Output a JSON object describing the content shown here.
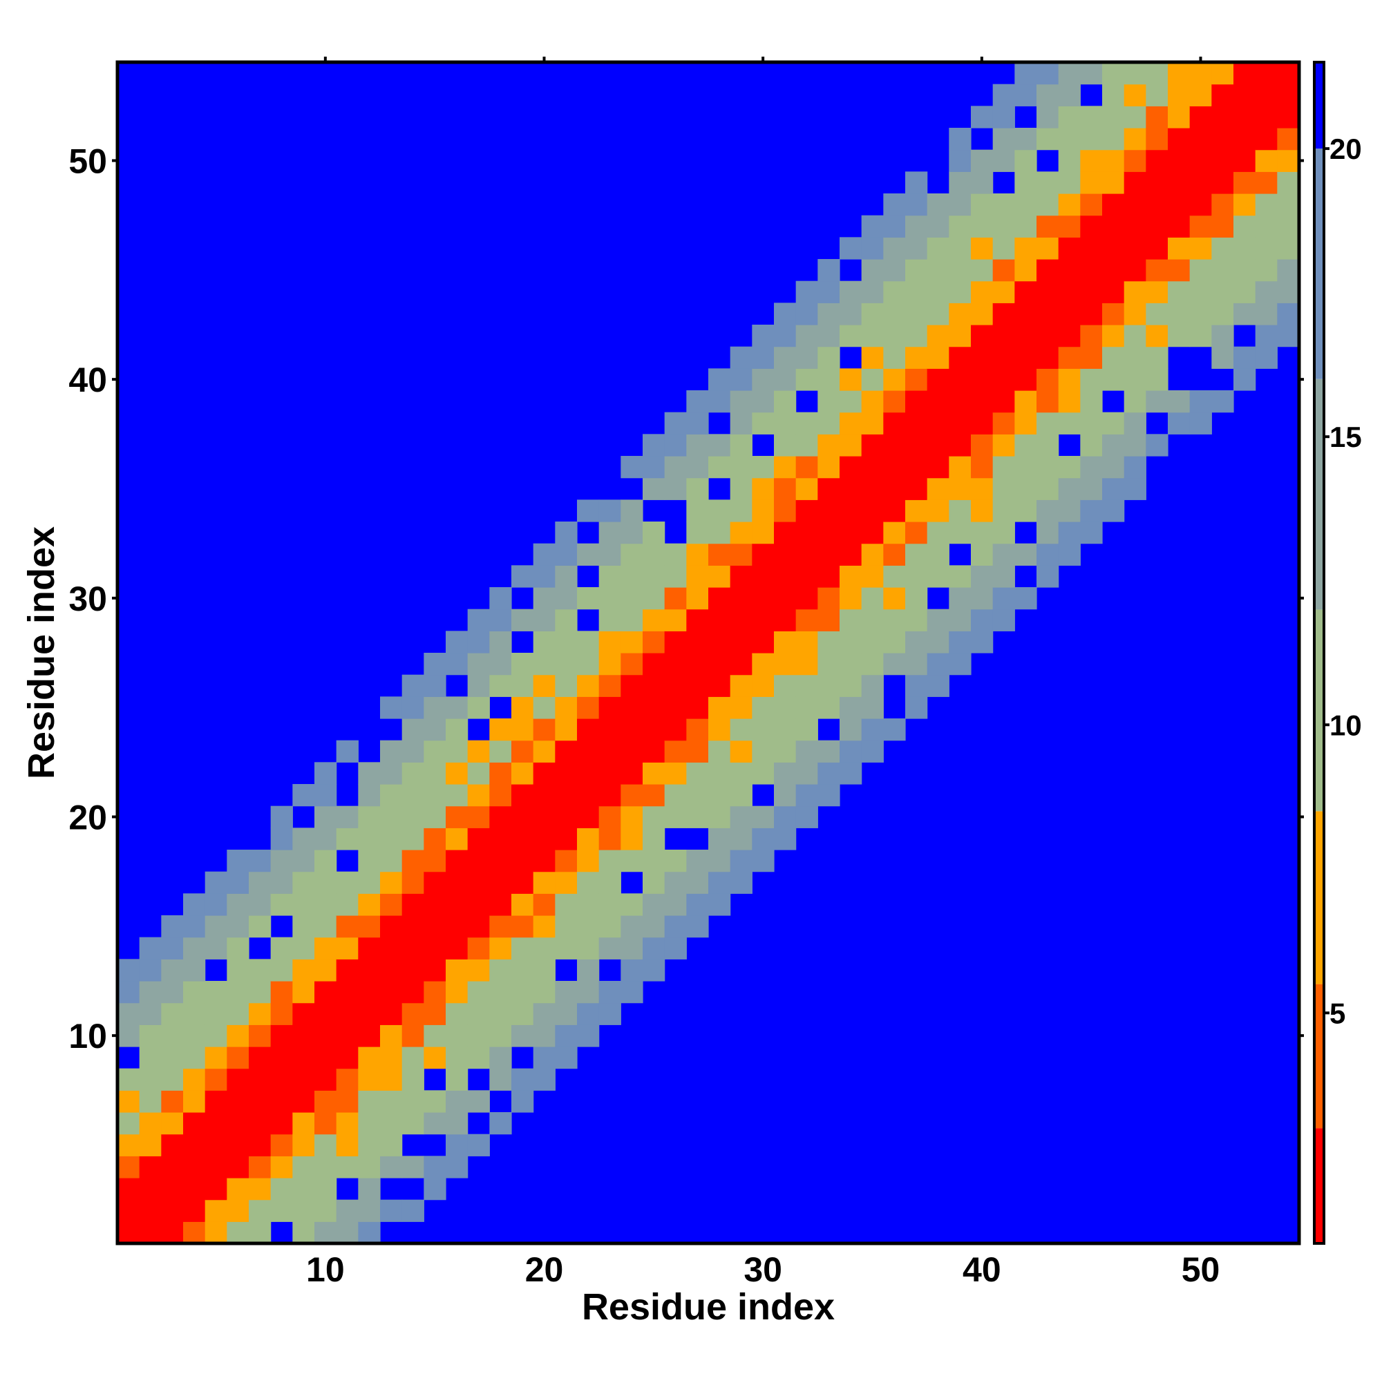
{
  "chart_data": {
    "type": "heatmap",
    "title": "",
    "xlabel": "Residue index",
    "ylabel": "Residue index",
    "n": 54,
    "xlim": [
      0.5,
      54.5
    ],
    "ylim": [
      0.5,
      54.5
    ],
    "x_ticks": [
      10,
      20,
      30,
      40,
      50
    ],
    "y_ticks": [
      10,
      20,
      30,
      40,
      50
    ],
    "x_tick_labels": [
      "10",
      "20",
      "30",
      "40",
      "50"
    ],
    "y_tick_labels": [
      "10",
      "20",
      "30",
      "40",
      "50"
    ],
    "colorbar": {
      "min": 1,
      "max": 21.5,
      "ticks": [
        5,
        10,
        15,
        20
      ],
      "tick_labels": [
        "5",
        "10",
        "15",
        "20"
      ],
      "levels": [
        {
          "upper": 3.0,
          "color": "#ff0000"
        },
        {
          "upper": 5.5,
          "color": "#ff6000"
        },
        {
          "upper": 8.5,
          "color": "#ffa500"
        },
        {
          "upper": 12.0,
          "color": "#a0bc8a"
        },
        {
          "upper": 16.0,
          "color": "#8ea6a2"
        },
        {
          "upper": 20.0,
          "color": "#6f8fbc"
        },
        {
          "upper": 999,
          "color": "#0000ff"
        }
      ]
    },
    "cell_color_rule": "value estimated from residue separation |i-j| with blue (>20) background; off-band blue holes where distance exceeds cutoff",
    "background_color": "#0000ff"
  }
}
